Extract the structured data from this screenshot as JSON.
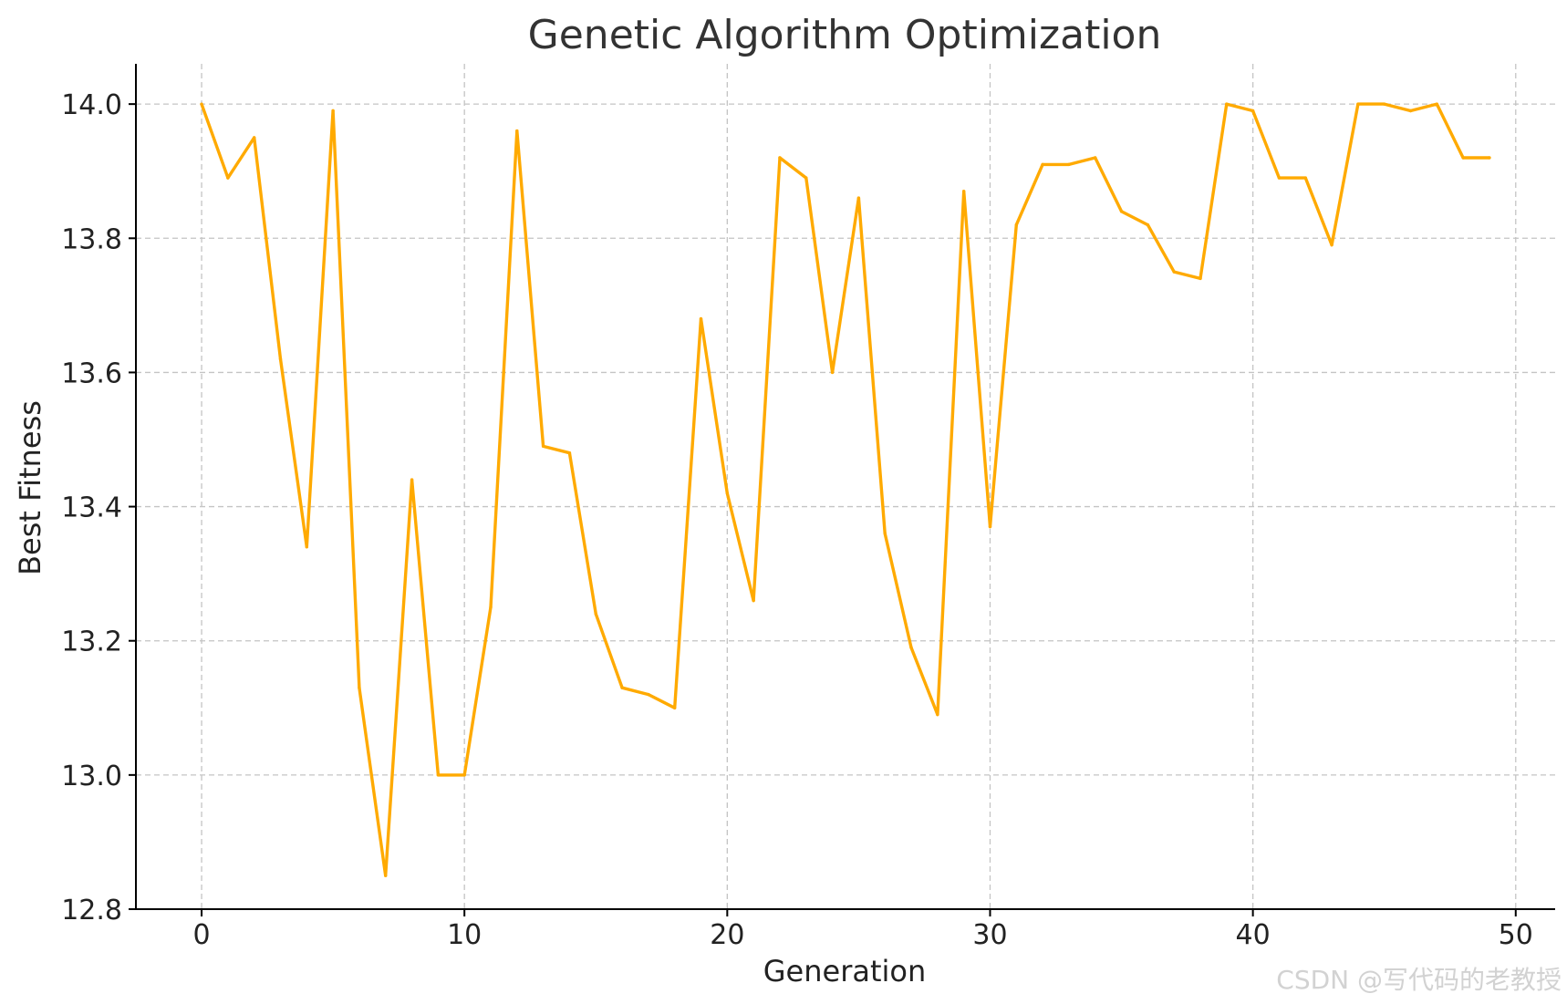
{
  "watermark": "CSDN @写代码的老教授",
  "chart_data": {
    "type": "line",
    "title": "Genetic Algorithm Optimization",
    "xlabel": "Generation",
    "ylabel": "Best Fitness",
    "xlim": [
      -2.5,
      51.5
    ],
    "ylim": [
      12.8,
      14.06
    ],
    "xticks": [
      0,
      10,
      20,
      30,
      40,
      50
    ],
    "yticks": [
      12.8,
      13.0,
      13.2,
      13.4,
      13.6,
      13.8,
      14.0
    ],
    "xtick_labels": [
      "0",
      "10",
      "20",
      "30",
      "40",
      "50"
    ],
    "ytick_labels": [
      "12.8",
      "13.0",
      "13.2",
      "13.4",
      "13.6",
      "13.8",
      "14.0"
    ],
    "grid": true,
    "series": [
      {
        "color": "#FFAA00",
        "x": [
          0,
          1,
          2,
          3,
          4,
          5,
          6,
          7,
          8,
          9,
          10,
          11,
          12,
          13,
          14,
          15,
          16,
          17,
          18,
          19,
          20,
          21,
          22,
          23,
          24,
          25,
          26,
          27,
          28,
          29,
          30,
          31,
          32,
          33,
          34,
          35,
          36,
          37,
          38,
          39,
          40,
          41,
          42,
          43,
          44,
          45,
          46,
          47,
          48,
          49
        ],
        "values": [
          14.0,
          13.89,
          13.95,
          13.62,
          13.34,
          13.99,
          13.13,
          12.85,
          13.44,
          13.0,
          13.0,
          13.25,
          13.96,
          13.49,
          13.48,
          13.24,
          13.13,
          13.12,
          13.1,
          13.68,
          13.42,
          13.26,
          13.92,
          13.89,
          13.6,
          13.86,
          13.36,
          13.19,
          13.09,
          13.87,
          13.37,
          13.82,
          13.91,
          13.91,
          13.92,
          13.84,
          13.82,
          13.75,
          13.74,
          14.0,
          13.99,
          13.89,
          13.89,
          13.79,
          14.0,
          14.0,
          13.99,
          14.0,
          13.92,
          13.92
        ]
      }
    ]
  }
}
